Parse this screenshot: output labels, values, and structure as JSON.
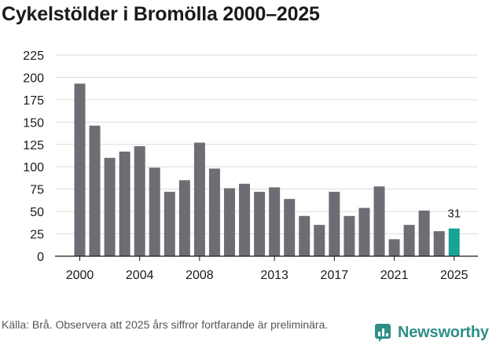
{
  "title": "Cykelstölder i Bromölla 2000–2025",
  "footer": {
    "source": "Källa: Brå. Observera att 2025 års siffror fortfarande är preliminära.",
    "brand": "Newsworthy"
  },
  "colors": {
    "bar": "#6e6d73",
    "highlight": "#16a394",
    "grid": "#dddddd",
    "brand": "#2e8f87"
  },
  "chart_data": {
    "type": "bar",
    "title": "Cykelstölder i Bromölla 2000–2025",
    "xlabel": "",
    "ylabel": "",
    "ylim": [
      0,
      225
    ],
    "yticks": [
      0,
      25,
      50,
      75,
      100,
      125,
      150,
      175,
      200,
      225
    ],
    "categories": [
      "2000",
      "2001",
      "2002",
      "2003",
      "2004",
      "2005",
      "2006",
      "2007",
      "2008",
      "2009",
      "2010",
      "2011",
      "2012",
      "2013",
      "2014",
      "2015",
      "2016",
      "2017",
      "2018",
      "2019",
      "2020",
      "2021",
      "2022",
      "2023",
      "2024",
      "2025"
    ],
    "values": [
      193,
      146,
      110,
      117,
      123,
      99,
      72,
      85,
      127,
      98,
      76,
      81,
      72,
      77,
      64,
      45,
      35,
      72,
      45,
      54,
      78,
      19,
      35,
      51,
      28,
      31
    ],
    "xtick_labels": [
      "2000",
      "2004",
      "2008",
      "2013",
      "2017",
      "2021",
      "2025"
    ],
    "highlight_category": "2025",
    "data_labels": [
      {
        "category": "2025",
        "text": "31"
      }
    ],
    "grid": true
  }
}
